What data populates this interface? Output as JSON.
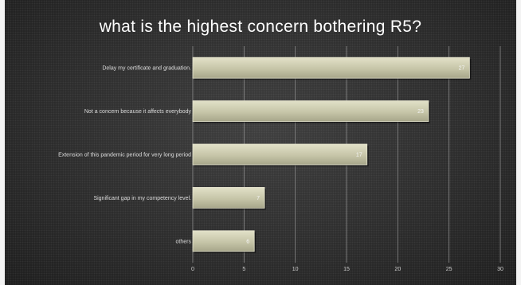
{
  "chart_data": {
    "type": "bar",
    "orientation": "horizontal",
    "title": "what is the highest concern bothering R5?",
    "categories": [
      "Delay my certificate and graduation.",
      "Not a concern because it affects everybody",
      "Extension of this pandemic period for very long period",
      "Significant gap in my competency level.",
      "others"
    ],
    "values": [
      27,
      23,
      17,
      7,
      6
    ],
    "xlim": [
      0,
      30
    ],
    "xticks": [
      0,
      5,
      10,
      15,
      20,
      25,
      30
    ],
    "grid": true,
    "legend": "none",
    "xlabel": "",
    "ylabel": "",
    "colors": {
      "bar": "#c9c8ac",
      "bar_edge": "#e4e3cd",
      "background": "#2b2b2b",
      "grid": "#8a8a8a"
    }
  }
}
